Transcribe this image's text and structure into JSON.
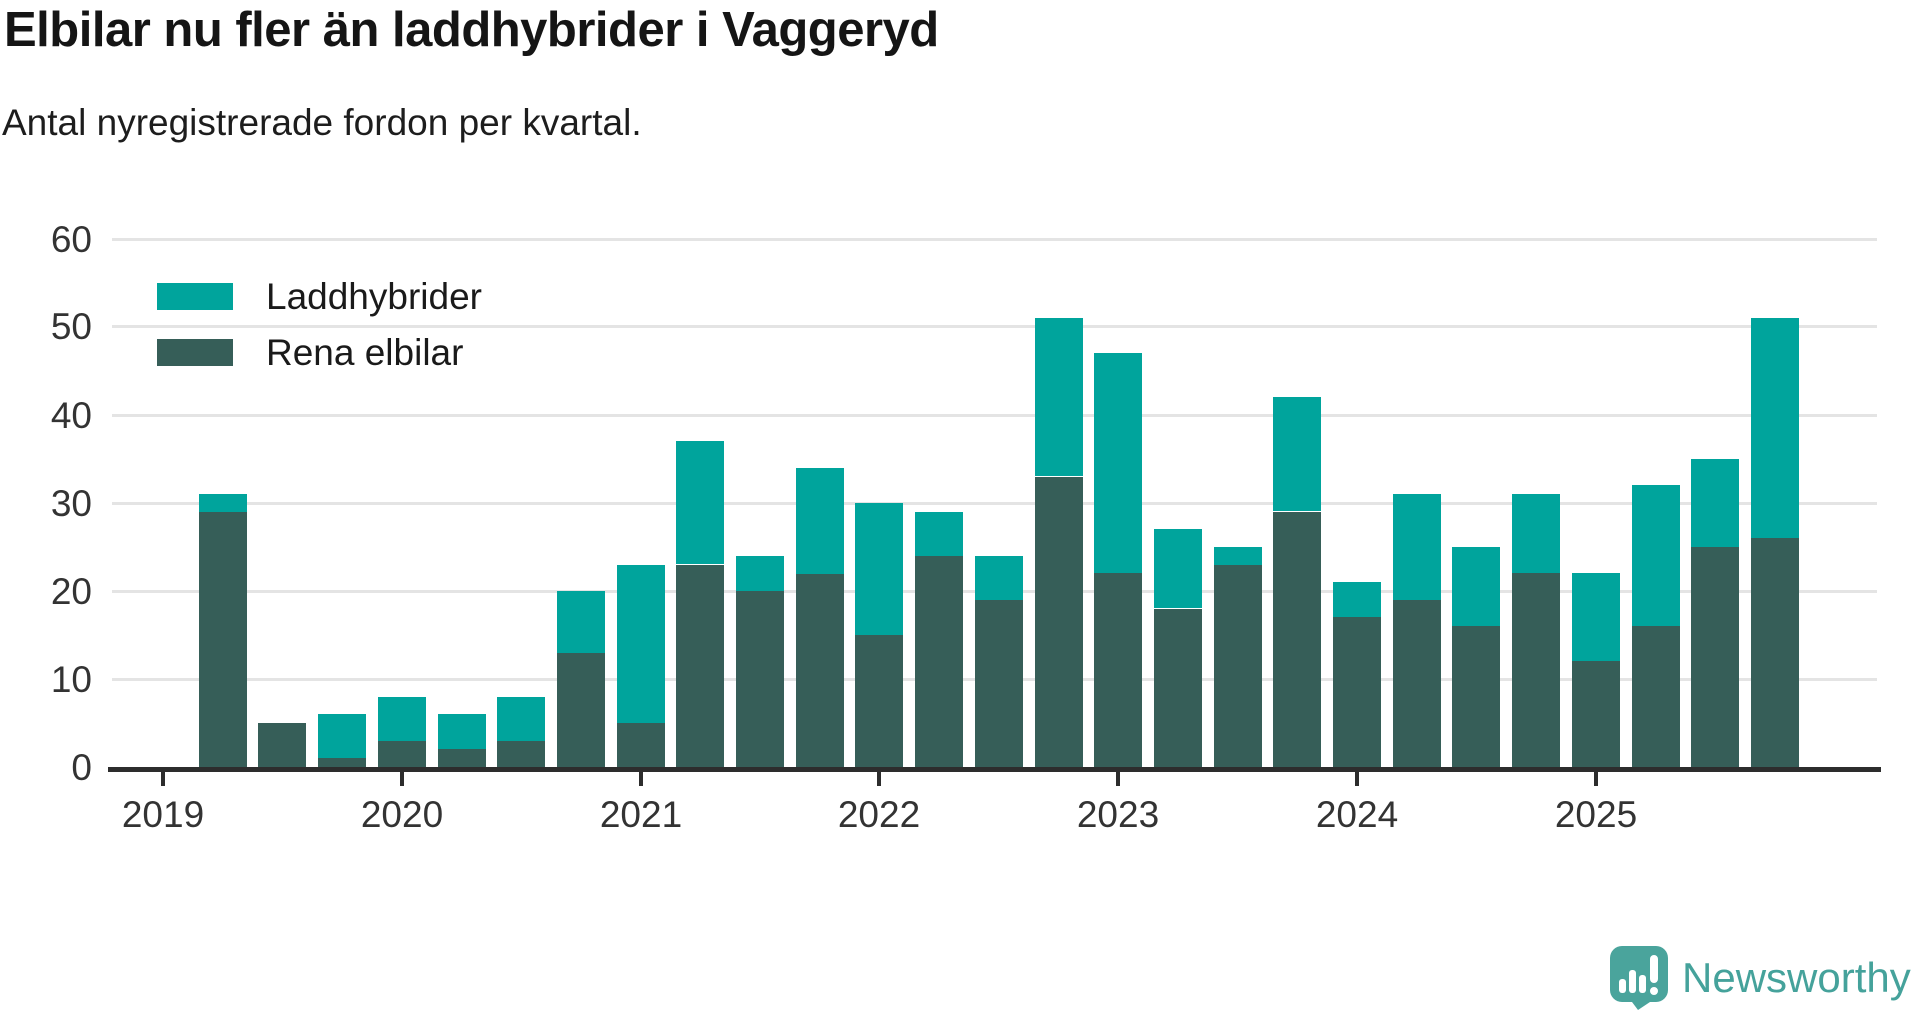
{
  "chart_data": {
    "type": "bar",
    "stacked": true,
    "title": "Elbilar nu fler än laddhybrider i Vaggeryd",
    "subtitle": "Antal nyregistrerade fordon per kvartal.",
    "categories": [
      "2019 Q2",
      "2019 Q3",
      "2019 Q4",
      "2020 Q1",
      "2020 Q2",
      "2020 Q3",
      "2020 Q4",
      "2021 Q1",
      "2021 Q2",
      "2021 Q3",
      "2021 Q4",
      "2022 Q1",
      "2022 Q2",
      "2022 Q3",
      "2022 Q4",
      "2023 Q1",
      "2023 Q2",
      "2023 Q3",
      "2023 Q4",
      "2024 Q1",
      "2024 Q2",
      "2024 Q3",
      "2024 Q4",
      "2025 Q1",
      "2025 Q2",
      "2025 Q3",
      "2025 Q4"
    ],
    "series": [
      {
        "name": "Laddhybrider",
        "color": "#00a49c",
        "values": [
          2,
          0,
          5,
          5,
          4,
          5,
          7,
          18,
          14,
          4,
          12,
          15,
          5,
          5,
          18,
          25,
          9,
          2,
          13,
          4,
          12,
          9,
          9,
          10,
          16,
          10,
          25
        ]
      },
      {
        "name": "Rena elbilar",
        "color": "#365e58",
        "values": [
          29,
          5,
          1,
          3,
          2,
          3,
          13,
          5,
          23,
          20,
          22,
          15,
          24,
          19,
          33,
          22,
          18,
          23,
          29,
          17,
          19,
          16,
          22,
          12,
          16,
          25,
          26
        ]
      }
    ],
    "totals": [
      31,
      5,
      6,
      8,
      6,
      8,
      20,
      23,
      37,
      24,
      34,
      30,
      29,
      24,
      51,
      47,
      27,
      25,
      42,
      21,
      31,
      25,
      31,
      22,
      32,
      35,
      51
    ],
    "x_tick_labels": [
      "2019",
      "2020",
      "2021",
      "2022",
      "2023",
      "2024",
      "2025"
    ],
    "y_ticks": [
      0,
      10,
      20,
      30,
      40,
      50,
      60
    ],
    "ylim": [
      0,
      62
    ],
    "grid": "horizontal",
    "legend_position": "top-left"
  },
  "logo": {
    "text": "Newsworthy",
    "icon": "newsworthy-bars-exclamation-bubble-icon",
    "color": "#45a29b",
    "icon_color": "#4aa49c"
  }
}
